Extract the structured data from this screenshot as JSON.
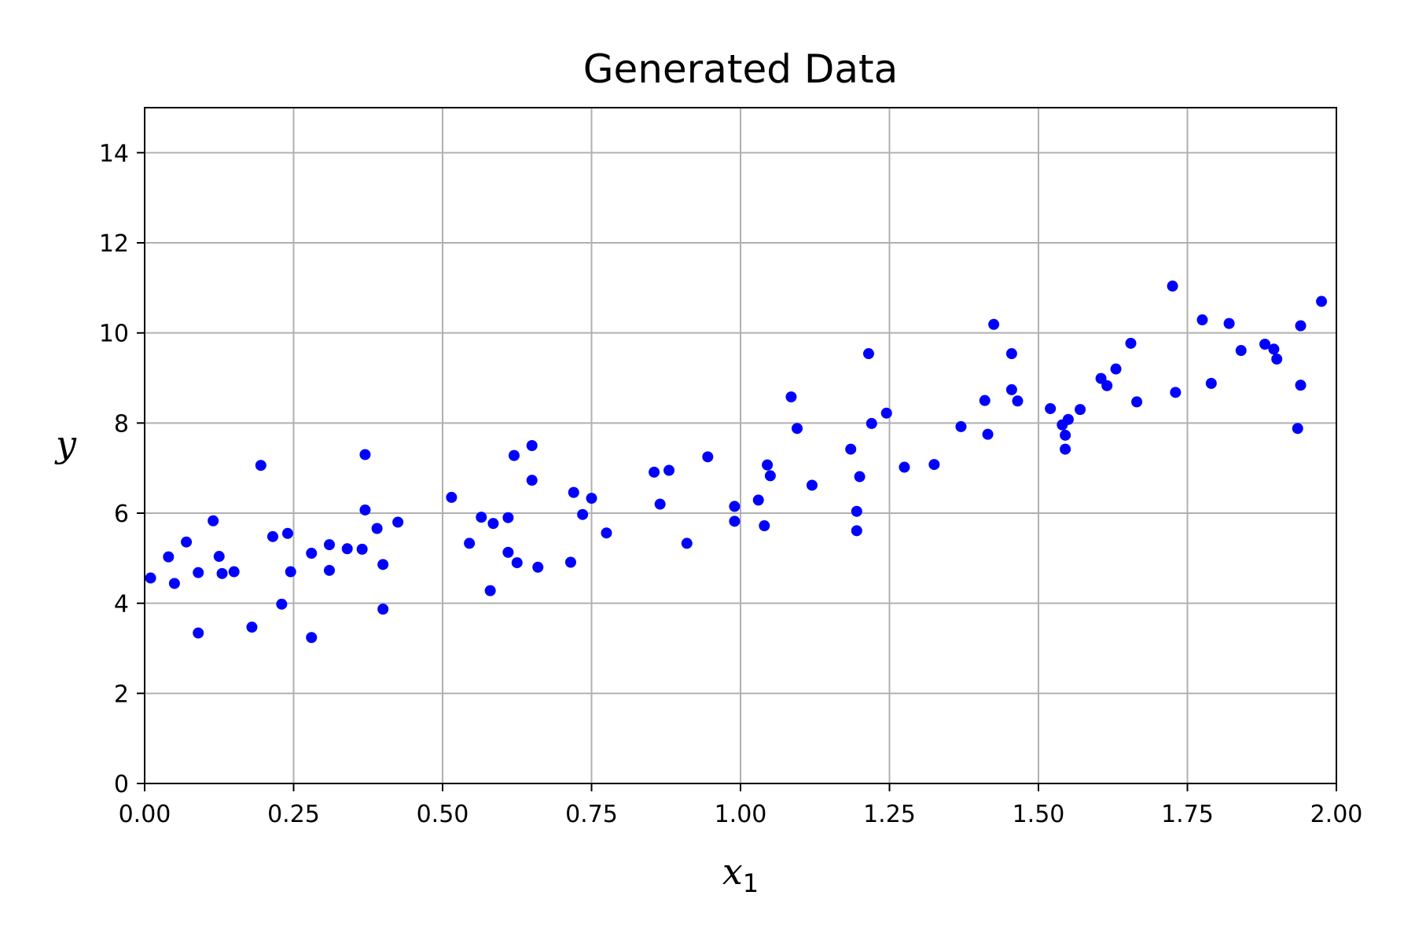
{
  "chart_data": {
    "type": "scatter",
    "title": "Generated Data",
    "xlabel": "x",
    "xlabel_subscript": "1",
    "ylabel": "y",
    "xlim": [
      0,
      2
    ],
    "ylim": [
      0,
      15
    ],
    "xticks": [
      "0.00",
      "0.25",
      "0.50",
      "0.75",
      "1.00",
      "1.25",
      "1.50",
      "1.75",
      "2.00"
    ],
    "yticks": [
      "0",
      "2",
      "4",
      "6",
      "8",
      "10",
      "12",
      "14"
    ],
    "grid": true,
    "marker_color": "#0000ff",
    "series": [
      {
        "points": [
          [
            0.01,
            4.56
          ],
          [
            0.04,
            5.03
          ],
          [
            0.05,
            4.44
          ],
          [
            0.07,
            5.36
          ],
          [
            0.09,
            3.34
          ],
          [
            0.09,
            4.68
          ],
          [
            0.115,
            5.83
          ],
          [
            0.125,
            5.04
          ],
          [
            0.13,
            4.66
          ],
          [
            0.15,
            4.7
          ],
          [
            0.18,
            3.47
          ],
          [
            0.195,
            7.06
          ],
          [
            0.215,
            5.48
          ],
          [
            0.23,
            3.98
          ],
          [
            0.24,
            5.55
          ],
          [
            0.245,
            4.7
          ],
          [
            0.28,
            5.11
          ],
          [
            0.28,
            3.24
          ],
          [
            0.31,
            5.3
          ],
          [
            0.31,
            4.73
          ],
          [
            0.34,
            5.21
          ],
          [
            0.365,
            5.2
          ],
          [
            0.37,
            6.07
          ],
          [
            0.37,
            7.3
          ],
          [
            0.39,
            5.66
          ],
          [
            0.4,
            4.86
          ],
          [
            0.4,
            3.87
          ],
          [
            0.425,
            5.8
          ],
          [
            0.515,
            6.35
          ],
          [
            0.545,
            5.33
          ],
          [
            0.565,
            5.91
          ],
          [
            0.58,
            4.28
          ],
          [
            0.585,
            5.77
          ],
          [
            0.61,
            5.9
          ],
          [
            0.61,
            5.13
          ],
          [
            0.62,
            7.28
          ],
          [
            0.625,
            4.9
          ],
          [
            0.65,
            6.73
          ],
          [
            0.65,
            7.5
          ],
          [
            0.66,
            4.8
          ],
          [
            0.715,
            4.91
          ],
          [
            0.72,
            6.46
          ],
          [
            0.735,
            5.97
          ],
          [
            0.75,
            6.33
          ],
          [
            0.775,
            5.56
          ],
          [
            0.855,
            6.91
          ],
          [
            0.865,
            6.2
          ],
          [
            0.88,
            6.95
          ],
          [
            0.91,
            5.33
          ],
          [
            0.945,
            7.25
          ],
          [
            0.99,
            6.15
          ],
          [
            0.99,
            5.82
          ],
          [
            1.03,
            6.29
          ],
          [
            1.04,
            5.72
          ],
          [
            1.045,
            7.07
          ],
          [
            1.05,
            6.83
          ],
          [
            1.085,
            8.58
          ],
          [
            1.095,
            7.88
          ],
          [
            1.12,
            6.62
          ],
          [
            1.185,
            7.42
          ],
          [
            1.195,
            6.04
          ],
          [
            1.195,
            5.61
          ],
          [
            1.2,
            6.81
          ],
          [
            1.215,
            9.54
          ],
          [
            1.22,
            7.99
          ],
          [
            1.245,
            8.22
          ],
          [
            1.275,
            7.02
          ],
          [
            1.325,
            7.08
          ],
          [
            1.37,
            7.92
          ],
          [
            1.41,
            8.5
          ],
          [
            1.415,
            7.75
          ],
          [
            1.425,
            10.19
          ],
          [
            1.455,
            9.54
          ],
          [
            1.455,
            8.74
          ],
          [
            1.465,
            8.49
          ],
          [
            1.52,
            8.32
          ],
          [
            1.54,
            7.96
          ],
          [
            1.545,
            7.73
          ],
          [
            1.545,
            7.42
          ],
          [
            1.55,
            8.08
          ],
          [
            1.57,
            8.3
          ],
          [
            1.605,
            8.99
          ],
          [
            1.615,
            8.83
          ],
          [
            1.63,
            9.2
          ],
          [
            1.655,
            9.77
          ],
          [
            1.665,
            8.47
          ],
          [
            1.725,
            11.04
          ],
          [
            1.73,
            8.68
          ],
          [
            1.775,
            10.29
          ],
          [
            1.79,
            8.88
          ],
          [
            1.82,
            10.21
          ],
          [
            1.84,
            9.61
          ],
          [
            1.88,
            9.75
          ],
          [
            1.895,
            9.64
          ],
          [
            1.9,
            9.42
          ],
          [
            1.935,
            7.88
          ],
          [
            1.94,
            8.84
          ],
          [
            1.94,
            10.16
          ],
          [
            1.975,
            10.7
          ]
        ]
      }
    ]
  }
}
